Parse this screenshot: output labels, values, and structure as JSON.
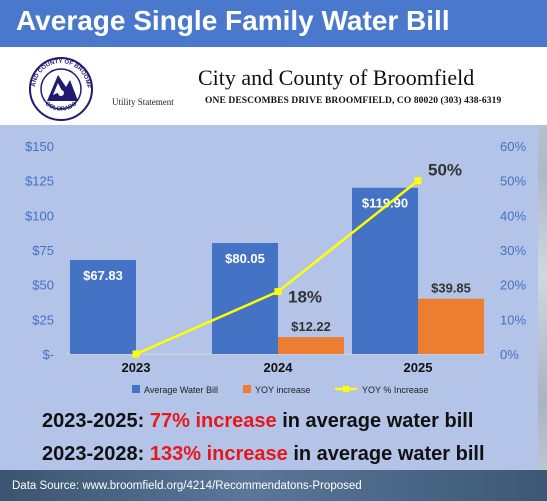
{
  "header": {
    "title": "Average Single Family Water Bill"
  },
  "letterhead": {
    "seal_text_top": "CITY AND COUNTY OF BROOMFIELD",
    "seal_text_bottom": "COLORADO",
    "utility_statement": "Utility Statement",
    "organization": "City and County of Broomfield",
    "address": "ONE DESCOMBES DRIVE BROOMFIELD, CO 80020 (303) 438-6319"
  },
  "colors": {
    "bar_average": "#4472c4",
    "bar_yoy": "#ed7d31",
    "line_pct": "#ffff00",
    "axis_text": "#4472c4",
    "highlight": "#e8171b"
  },
  "chart_data": {
    "type": "bar",
    "categories": [
      "2023",
      "2024",
      "2025"
    ],
    "series": [
      {
        "name": "Average Water Bill",
        "type": "bar",
        "values": [
          67.83,
          80.05,
          119.9
        ],
        "labels": [
          "$67.83",
          "$80.05",
          "$119.90"
        ]
      },
      {
        "name": "YOY increase",
        "type": "bar",
        "values": [
          0,
          12.22,
          39.85
        ],
        "labels": [
          "",
          "$12.22",
          "$39.85"
        ]
      },
      {
        "name": "YOY % Increase",
        "type": "line",
        "axis": "right",
        "values": [
          0,
          18,
          50
        ],
        "labels": [
          "",
          "18%",
          "50%"
        ]
      }
    ],
    "y_left": {
      "ylim": [
        0,
        150
      ],
      "ticks": [
        0,
        25,
        50,
        75,
        100,
        125,
        150
      ],
      "tick_labels": [
        "$-",
        "$25",
        "$50",
        "$75",
        "$100",
        "$125",
        "$150"
      ]
    },
    "y_right": {
      "ylim": [
        0,
        60
      ],
      "ticks": [
        0,
        10,
        20,
        30,
        40,
        50,
        60
      ],
      "tick_labels": [
        "0%",
        "10%",
        "20%",
        "30%",
        "40%",
        "50%",
        "60%"
      ]
    },
    "grid": false,
    "legend": "bottom"
  },
  "stats": [
    {
      "prefix": "2023-2025: ",
      "highlight": "77% increase",
      "suffix": " in average water bill"
    },
    {
      "prefix": "2023-2028: ",
      "highlight": "133% increase",
      "suffix": " in average water bill"
    }
  ],
  "source": "Data Source: www.broomfield.org/4214/Recommendatons-Proposed"
}
